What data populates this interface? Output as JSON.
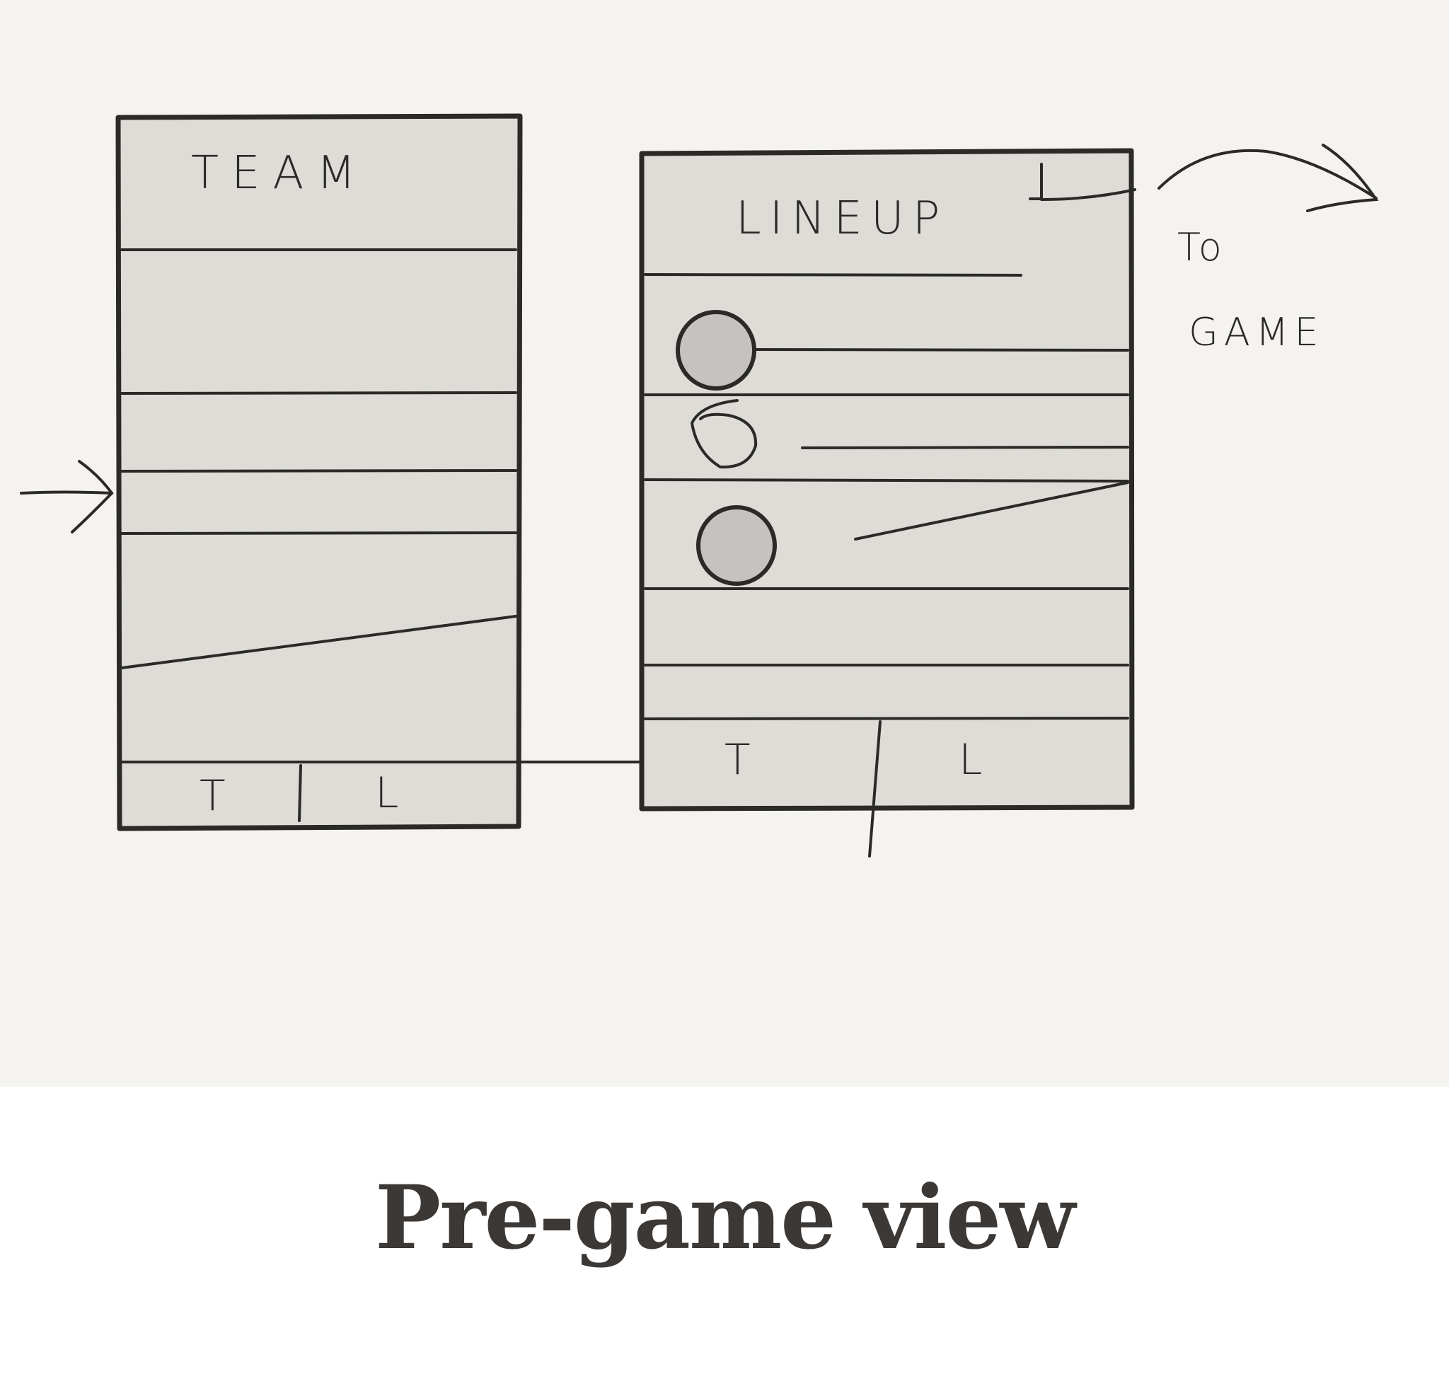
{
  "sketch": {
    "team_screen": {
      "title": "TEAM",
      "tabs": [
        "T",
        "L"
      ]
    },
    "lineup_screen": {
      "title": "LINEUP",
      "tabs": [
        "T",
        "L"
      ]
    },
    "to_game_note": {
      "line1": "To",
      "line2": "GAME"
    }
  },
  "caption": "Pre-game view",
  "colors": {
    "paper": "#f4f3ef",
    "screen_fill": "#dddcd7",
    "ink": "#2b2a28",
    "avatar_fill": "#c4c3bf",
    "caption": "#3b3835"
  }
}
